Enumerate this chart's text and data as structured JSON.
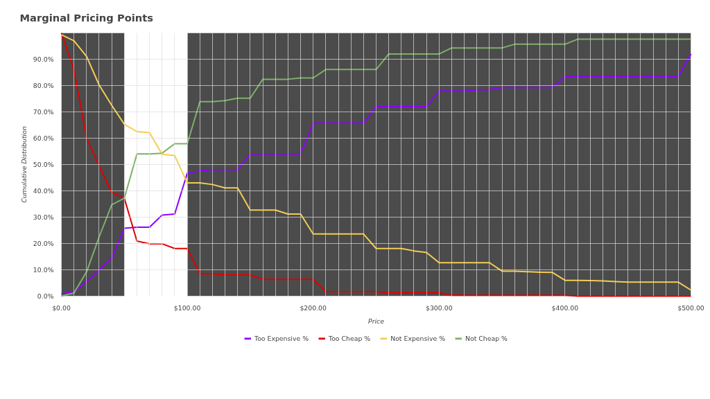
{
  "chart_data": {
    "type": "line",
    "title": "Marginal Pricing Points",
    "xlabel": "Price",
    "ylabel": "Cumulative Distribution",
    "x": [
      0,
      10,
      20,
      30,
      40,
      50,
      60,
      70,
      80,
      90,
      100,
      110,
      120,
      130,
      140,
      150,
      160,
      170,
      180,
      190,
      200,
      210,
      220,
      230,
      240,
      250,
      260,
      270,
      280,
      290,
      300,
      310,
      320,
      330,
      340,
      350,
      360,
      370,
      380,
      390,
      400,
      410,
      420,
      430,
      440,
      450,
      460,
      470,
      480,
      490,
      500
    ],
    "series": [
      {
        "name": "Too Expensive %",
        "color": "#8f00ff",
        "values": [
          0.9,
          1.7,
          5.5,
          10,
          14.4,
          25.8,
          26.2,
          26.2,
          30.8,
          31.2,
          46.7,
          47.6,
          48,
          48,
          48,
          54,
          54,
          54,
          54,
          54,
          65.7,
          65.7,
          65.7,
          65.7,
          65.7,
          72,
          72,
          72,
          72,
          72,
          77.9,
          77.9,
          77.9,
          78.4,
          78.4,
          79.3,
          79.3,
          79.3,
          79.3,
          79.3,
          83.5,
          83.5,
          83.5,
          83.5,
          83.5,
          83.5,
          83.5,
          83.5,
          83.5,
          83.5,
          92
        ]
      },
      {
        "name": "Too Cheap %",
        "color": "#e00000",
        "values": [
          100,
          85.9,
          60.1,
          49.5,
          39.4,
          37.2,
          20.9,
          19.9,
          19.9,
          18.1,
          18.1,
          8.5,
          8.5,
          8.1,
          8.1,
          8.1,
          6.4,
          6.4,
          6.4,
          6.4,
          6.4,
          1.7,
          1.7,
          1.7,
          1.7,
          1.7,
          1.3,
          1.3,
          1.3,
          1.3,
          1.3,
          0.3,
          0.3,
          0.3,
          0.3,
          0.3,
          0.3,
          0.3,
          0.3,
          0.3,
          0.3,
          0,
          0,
          0,
          0,
          0,
          0,
          0,
          0,
          0,
          0
        ]
      },
      {
        "name": "Not Expensive %",
        "color": "#f5cd4f",
        "values": [
          99.3,
          97,
          91.1,
          80.2,
          72.5,
          65.3,
          62.5,
          62.1,
          53.9,
          53.4,
          43,
          43,
          42.4,
          41.1,
          41.1,
          32.7,
          32.7,
          32.7,
          31.2,
          31.2,
          23.6,
          23.6,
          23.6,
          23.6,
          23.6,
          18.1,
          18.1,
          18.1,
          17.2,
          16.6,
          12.7,
          12.7,
          12.7,
          12.7,
          12.7,
          9.5,
          9.5,
          9.3,
          9.1,
          9,
          6,
          6,
          5.9,
          5.8,
          5.5,
          5.3,
          5.3,
          5.3,
          5.3,
          5.3,
          2.3
        ]
      },
      {
        "name": "Not Cheap %",
        "color": "#7fb069",
        "values": [
          0,
          1.2,
          9.2,
          22.5,
          34.7,
          37.2,
          54,
          54,
          54.3,
          57.9,
          57.9,
          73.9,
          73.9,
          74.3,
          75.2,
          75.2,
          82.4,
          82.4,
          82.4,
          82.9,
          82.9,
          86.1,
          86.1,
          86.1,
          86.1,
          86.1,
          92,
          92,
          92,
          92,
          92,
          94.3,
          94.3,
          94.3,
          94.3,
          94.3,
          95.7,
          95.7,
          95.7,
          95.7,
          95.7,
          97.6,
          97.6,
          97.6,
          97.6,
          97.6,
          97.6,
          97.6,
          97.6,
          97.6,
          97.6
        ]
      }
    ],
    "bands": [
      {
        "axis": "x",
        "from": 0,
        "to": 50,
        "color": "#4b4b4b"
      },
      {
        "axis": "x",
        "from": 100,
        "to": 500,
        "color": "#4b4b4b"
      }
    ],
    "xlim": [
      0,
      500
    ],
    "ylim": [
      0,
      100
    ],
    "xticks": [
      {
        "value": 0,
        "label": "$0.00"
      },
      {
        "value": 10,
        "label": null
      },
      {
        "value": 20,
        "label": null
      },
      {
        "value": 30,
        "label": null
      },
      {
        "value": 40,
        "label": null
      },
      {
        "value": 50,
        "label": null
      },
      {
        "value": 60,
        "label": null
      },
      {
        "value": 70,
        "label": null
      },
      {
        "value": 80,
        "label": null
      },
      {
        "value": 90,
        "label": null
      },
      {
        "value": 100,
        "label": "$100.00"
      },
      {
        "value": 110,
        "label": null
      },
      {
        "value": 120,
        "label": null
      },
      {
        "value": 130,
        "label": null
      },
      {
        "value": 140,
        "label": null
      },
      {
        "value": 150,
        "label": null
      },
      {
        "value": 160,
        "label": null
      },
      {
        "value": 170,
        "label": null
      },
      {
        "value": 180,
        "label": null
      },
      {
        "value": 190,
        "label": null
      },
      {
        "value": 200,
        "label": "$200.00"
      },
      {
        "value": 210,
        "label": null
      },
      {
        "value": 220,
        "label": null
      },
      {
        "value": 230,
        "label": null
      },
      {
        "value": 240,
        "label": null
      },
      {
        "value": 250,
        "label": null
      },
      {
        "value": 260,
        "label": null
      },
      {
        "value": 270,
        "label": null
      },
      {
        "value": 280,
        "label": null
      },
      {
        "value": 290,
        "label": null
      },
      {
        "value": 300,
        "label": "$300.00"
      },
      {
        "value": 310,
        "label": null
      },
      {
        "value": 320,
        "label": null
      },
      {
        "value": 330,
        "label": null
      },
      {
        "value": 340,
        "label": null
      },
      {
        "value": 350,
        "label": null
      },
      {
        "value": 360,
        "label": null
      },
      {
        "value": 370,
        "label": null
      },
      {
        "value": 380,
        "label": null
      },
      {
        "value": 390,
        "label": null
      },
      {
        "value": 400,
        "label": "$400.00"
      },
      {
        "value": 410,
        "label": null
      },
      {
        "value": 420,
        "label": null
      },
      {
        "value": 430,
        "label": null
      },
      {
        "value": 440,
        "label": null
      },
      {
        "value": 450,
        "label": null
      },
      {
        "value": 460,
        "label": null
      },
      {
        "value": 470,
        "label": null
      },
      {
        "value": 480,
        "label": null
      },
      {
        "value": 490,
        "label": null
      },
      {
        "value": 500,
        "label": "$500.00"
      }
    ],
    "yticks": [
      {
        "value": 0,
        "label": "0.0%"
      },
      {
        "value": 10,
        "label": "10.0%"
      },
      {
        "value": 20,
        "label": "20.0%"
      },
      {
        "value": 30,
        "label": "30.0%"
      },
      {
        "value": 40,
        "label": "40.0%"
      },
      {
        "value": 50,
        "label": "50.0%"
      },
      {
        "value": 60,
        "label": "60.0%"
      },
      {
        "value": 70,
        "label": "70.0%"
      },
      {
        "value": 80,
        "label": "80.0%"
      },
      {
        "value": 90,
        "label": "90.0%"
      }
    ],
    "grid": true,
    "legend": "bottom",
    "marker": "none",
    "line_style": "solid"
  }
}
